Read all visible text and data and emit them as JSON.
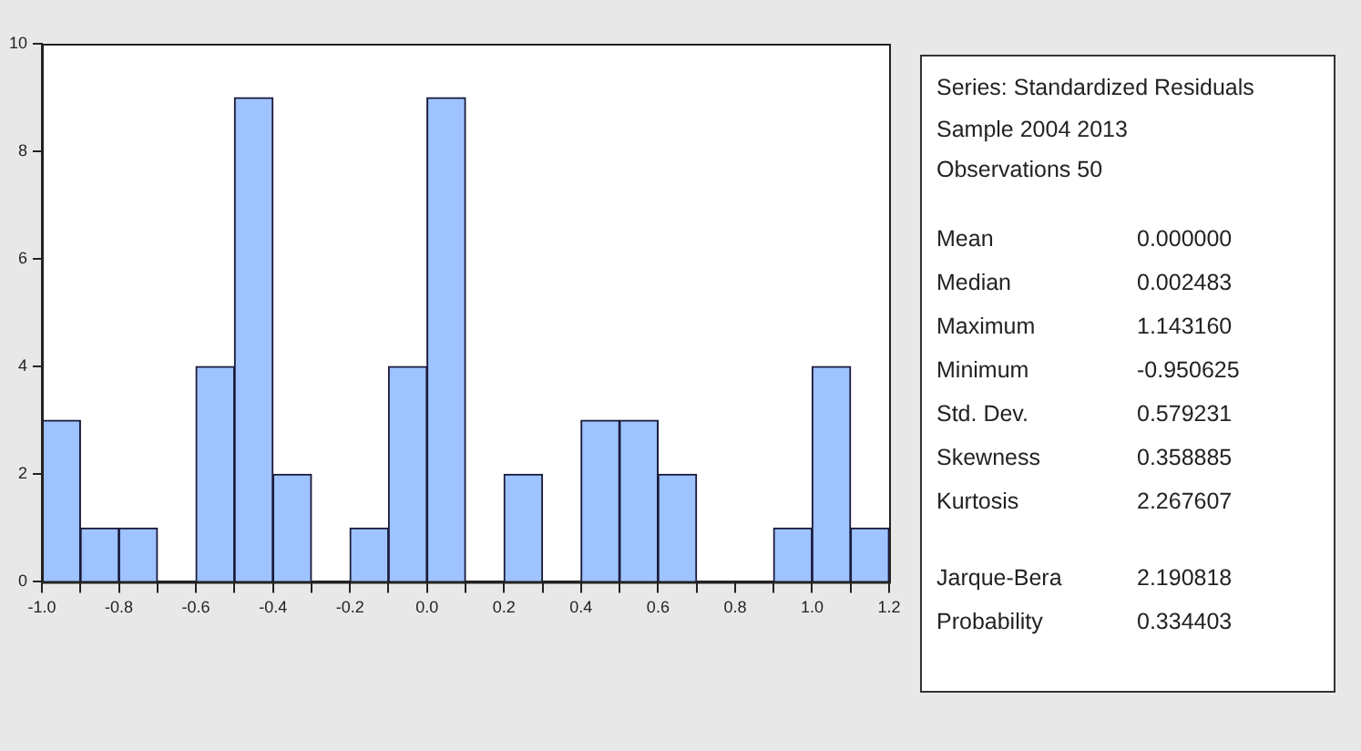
{
  "chart_data": {
    "type": "histogram",
    "bins": [
      -1.0,
      -0.9,
      -0.8,
      -0.7,
      -0.6,
      -0.5,
      -0.4,
      -0.3,
      -0.2,
      -0.1,
      0.0,
      0.1,
      0.2,
      0.3,
      0.4,
      0.5,
      0.6,
      0.7,
      0.8,
      0.9,
      1.0,
      1.1,
      1.2
    ],
    "values": [
      3,
      1,
      1,
      0,
      4,
      9,
      2,
      0,
      1,
      4,
      9,
      0,
      2,
      0,
      3,
      3,
      2,
      0,
      0,
      1,
      4,
      1
    ],
    "color": "#9ec3ff",
    "xlim": [
      -1.0,
      1.2
    ],
    "xticks": [
      {
        "value": -1.0,
        "label": "-1.0"
      },
      {
        "value": -0.9,
        "label": null
      },
      {
        "value": -0.8,
        "label": "-0.8"
      },
      {
        "value": -0.7,
        "label": null
      },
      {
        "value": -0.6,
        "label": "-0.6"
      },
      {
        "value": -0.5,
        "label": null
      },
      {
        "value": -0.4,
        "label": "-0.4"
      },
      {
        "value": -0.3,
        "label": null
      },
      {
        "value": -0.2,
        "label": "-0.2"
      },
      {
        "value": -0.1,
        "label": null
      },
      {
        "value": 0.0,
        "label": "0.0"
      },
      {
        "value": 0.1,
        "label": null
      },
      {
        "value": 0.2,
        "label": "0.2"
      },
      {
        "value": 0.3,
        "label": null
      },
      {
        "value": 0.4,
        "label": "0.4"
      },
      {
        "value": 0.5,
        "label": null
      },
      {
        "value": 0.6,
        "label": "0.6"
      },
      {
        "value": 0.7,
        "label": null
      },
      {
        "value": 0.8,
        "label": "0.8"
      },
      {
        "value": 0.9,
        "label": null
      },
      {
        "value": 1.0,
        "label": "1.0"
      },
      {
        "value": 1.1,
        "label": null
      },
      {
        "value": 1.2,
        "label": "1.2"
      }
    ],
    "ylim": [
      0,
      10
    ],
    "yticks": [
      0,
      2,
      4,
      6,
      8,
      10
    ],
    "grid": false,
    "legend": false,
    "annotations": [
      "Series: Standardized Residuals",
      "Sample 2004 2013",
      "Observations 50",
      "Mean",
      "0.000000",
      "Median",
      "0.002483",
      "Maximum",
      "1.143160",
      "Minimum",
      "-0.950625",
      "Std. Dev.",
      "0.579231",
      "Skewness",
      "0.358885",
      "Kurtosis",
      "2.267607",
      "Jarque-Bera",
      "2.190818",
      "Probability",
      "0.334403"
    ]
  }
}
